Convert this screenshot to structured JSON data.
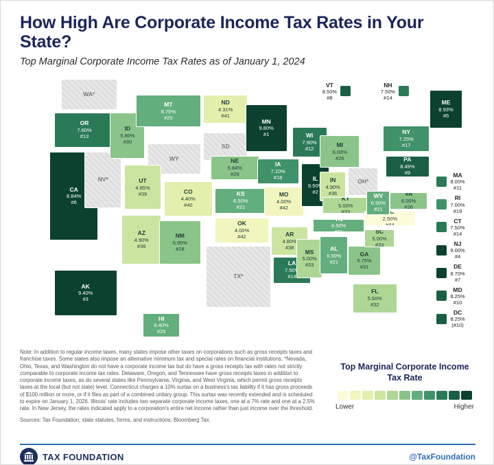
{
  "header": {
    "title": "How High Are Corporate Income Tax Rates in Your State?",
    "subtitle": "Top Marginal Corporate Income Tax Rates as of January 1, 2024"
  },
  "chart_data": {
    "type": "choropleth",
    "metric": "Top marginal corporate income tax rate (%)",
    "as_of": "January 1, 2024",
    "states": [
      {
        "abbr": "WA*",
        "gray": true
      },
      {
        "abbr": "OR",
        "rate": "7.60%",
        "rank": "#13",
        "value": 7.6
      },
      {
        "abbr": "CA",
        "rate": "8.84%",
        "rank": "#6",
        "value": 8.84
      },
      {
        "abbr": "NV*",
        "gray": true
      },
      {
        "abbr": "ID",
        "rate": "5.80%",
        "rank": "#30",
        "value": 5.8
      },
      {
        "abbr": "MT",
        "rate": "6.75%",
        "rank": "#20",
        "value": 6.75
      },
      {
        "abbr": "WY",
        "gray": true
      },
      {
        "abbr": "UT",
        "rate": "4.65%",
        "rank": "#39",
        "value": 4.65
      },
      {
        "abbr": "CO",
        "rate": "4.40%",
        "rank": "#40",
        "value": 4.4
      },
      {
        "abbr": "AZ",
        "rate": "4.90%",
        "rank": "#36",
        "value": 4.9
      },
      {
        "abbr": "NM",
        "rate": "5.90%",
        "rank": "#28",
        "value": 5.9
      },
      {
        "abbr": "ND",
        "rate": "4.31%",
        "rank": "#41",
        "value": 4.31
      },
      {
        "abbr": "SD",
        "gray": true
      },
      {
        "abbr": "NE",
        "rate": "5.84%",
        "rank": "#29",
        "value": 5.84
      },
      {
        "abbr": "KS",
        "rate": "6.50%",
        "rank": "#21",
        "value": 6.5
      },
      {
        "abbr": "OK",
        "rate": "4.00%",
        "rank": "#42",
        "value": 4.0
      },
      {
        "abbr": "TX*",
        "gray": true
      },
      {
        "abbr": "MN",
        "rate": "9.80%",
        "rank": "#1",
        "value": 9.8
      },
      {
        "abbr": "IA",
        "rate": "7.10%",
        "rank": "#18",
        "value": 7.1
      },
      {
        "abbr": "MO",
        "rate": "4.00%",
        "rank": "#42",
        "value": 4.0
      },
      {
        "abbr": "AR",
        "rate": "4.80%",
        "rank": "#38",
        "value": 4.8
      },
      {
        "abbr": "LA",
        "rate": "7.50%",
        "rank": "#14",
        "value": 7.5
      },
      {
        "abbr": "WI",
        "rate": "7.90%",
        "rank": "#12",
        "value": 7.9
      },
      {
        "abbr": "IL",
        "rate": "9.50%",
        "rank": "#2",
        "value": 9.5
      },
      {
        "abbr": "MS",
        "rate": "5.00%",
        "rank": "#33",
        "value": 5.0
      },
      {
        "abbr": "MI",
        "rate": "6.00%",
        "rank": "#26",
        "value": 6.0
      },
      {
        "abbr": "IN",
        "rate": "4.90%",
        "rank": "#36",
        "value": 4.9
      },
      {
        "abbr": "OH*",
        "gray": true
      },
      {
        "abbr": "KY",
        "rate": "5.00%",
        "rank": "#33",
        "value": 5.0
      },
      {
        "abbr": "TN",
        "rate": "6.50%",
        "rank": "#21",
        "value": 6.5
      },
      {
        "abbr": "AL",
        "rate": "6.50%",
        "rank": "#21",
        "value": 6.5
      },
      {
        "abbr": "GA",
        "rate": "5.75%",
        "rank": "#31",
        "value": 5.75
      },
      {
        "abbr": "SC",
        "rate": "5.00%",
        "rank": "#33",
        "value": 5.0
      },
      {
        "abbr": "FL",
        "rate": "5.50%",
        "rank": "#32",
        "value": 5.5
      },
      {
        "abbr": "NC",
        "rate": "2.50%",
        "rank": "#44",
        "value": 2.5
      },
      {
        "abbr": "WV",
        "rate": "6.50%",
        "rank": "#21",
        "value": 6.5
      },
      {
        "abbr": "VA",
        "rate": "6.00%",
        "rank": "#26",
        "value": 6.0
      },
      {
        "abbr": "PA",
        "rate": "8.49%",
        "rank": "#9",
        "value": 8.49
      },
      {
        "abbr": "NY",
        "rate": "7.25%",
        "rank": "#17",
        "value": 7.25
      },
      {
        "abbr": "ME",
        "rate": "8.93%",
        "rank": "#5",
        "value": 8.93
      },
      {
        "abbr": "VT",
        "rate": "8.50%",
        "rank": "#8",
        "value": 8.5
      },
      {
        "abbr": "NH",
        "rate": "7.50%",
        "rank": "#14",
        "value": 7.5
      },
      {
        "abbr": "MA",
        "rate": "8.00%",
        "rank": "#11",
        "value": 8.0
      },
      {
        "abbr": "RI",
        "rate": "7.00%",
        "rank": "#19",
        "value": 7.0
      },
      {
        "abbr": "CT",
        "rate": "7.50%",
        "rank": "#14",
        "value": 7.5
      },
      {
        "abbr": "NJ",
        "rate": "9.00%",
        "rank": "#4",
        "value": 9.0
      },
      {
        "abbr": "DE",
        "rate": "8.70%",
        "rank": "#7",
        "value": 8.7
      },
      {
        "abbr": "MD",
        "rate": "8.25%",
        "rank": "#10",
        "value": 8.25
      },
      {
        "abbr": "DC",
        "rate": "8.25%",
        "rank": "(#10)",
        "value": 8.25
      },
      {
        "abbr": "AK",
        "rate": "9.40%",
        "rank": "#3",
        "value": 9.4
      },
      {
        "abbr": "HI",
        "rate": "6.40%",
        "rank": "#25",
        "value": 6.4
      }
    ]
  },
  "legend": {
    "title": "Top Marginal Corporate Income Tax Rate",
    "lower_label": "Lower",
    "higher_label": "Higher",
    "colors": [
      "#fdfcd9",
      "#f2f5bd",
      "#e3efac",
      "#cbe5a1",
      "#aed695",
      "#8bc489",
      "#63ae7d",
      "#3f926a",
      "#2a7a57",
      "#1a5f44",
      "#0c4130"
    ],
    "gray_color": "#e0e0e0"
  },
  "notes": {
    "note": "Note: In addition to regular income taxes, many states impose other taxes on corporations such as gross receipts taxes and franchise taxes. Some states also impose an alternative minimum tax and special rates on financial institutions. *Nevada, Ohio, Texas, and Washington do not have a corporate income tax but do have a gross receipts tax with rates not strictly comparable to corporate income tax rates. Delaware, Oregon, and Tennessee have gross receipts taxes in addition to corporate income taxes, as do several states like Pennsylvania, Virginia, and West Virginia, which permit gross receipts taxes at the local (but not state) level. Connecticut charges a 10% surtax on a business's tax liability if it has gross proceeds of $100 million or more, or if it files as part of a combined unitary group. This surtax was recently extended and is scheduled to expire on January 1, 2026. Illinois' rate includes two separate corporate income taxes, one at a 7% rate and one at a 2.5% rate. In New Jersey, the rates indicated apply to a corporation's entire net income rather than just income over the threshold.",
    "sources": "Sources: Tax Foundation; state statutes, forms, and instructions; Bloomberg Tax."
  },
  "footer": {
    "brand": "TAX FOUNDATION",
    "handle": "@TaxFoundation"
  },
  "colors": {
    "accent_navy": "#1b2559",
    "accent_blue": "#2e6db4"
  }
}
